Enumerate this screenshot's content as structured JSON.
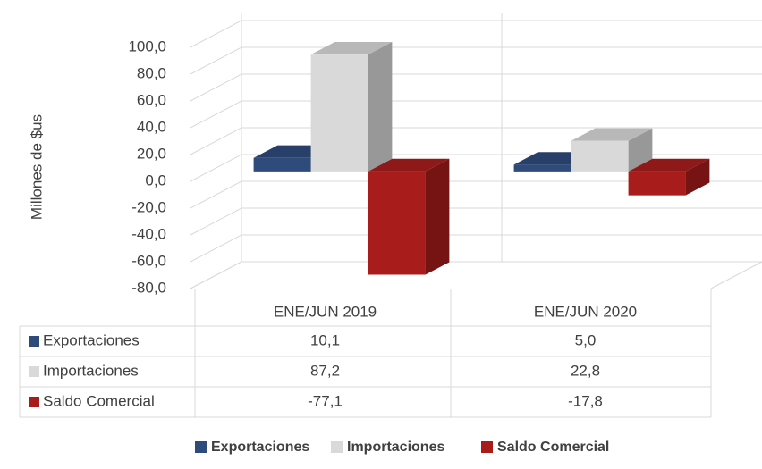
{
  "chart_data": {
    "type": "bar",
    "y_label": "Millones de $us",
    "categories": [
      "ENE/JUN 2019",
      "ENE/JUN 2020"
    ],
    "series": [
      {
        "name": "Exportaciones",
        "color": "#2f4b7c",
        "values": [
          10.1,
          5.0
        ],
        "value_labels": [
          "10,1",
          "5,0"
        ]
      },
      {
        "name": "Importaciones",
        "color": "#d9d9d9",
        "values": [
          87.2,
          22.8
        ],
        "value_labels": [
          "87,2",
          "22,8"
        ]
      },
      {
        "name": "Saldo Comercial",
        "color": "#a81c1c",
        "values": [
          -77.1,
          -17.8
        ],
        "value_labels": [
          "-77,1",
          "-17,8"
        ]
      }
    ],
    "ylim": [
      -80,
      100
    ],
    "yticks": [
      {
        "value": -80,
        "label": "-80,0"
      },
      {
        "value": -60,
        "label": "-60,0"
      },
      {
        "value": -40,
        "label": "-40,0"
      },
      {
        "value": -20,
        "label": "-20,0"
      },
      {
        "value": 0,
        "label": "0,0"
      },
      {
        "value": 20,
        "label": "20,0"
      },
      {
        "value": 40,
        "label": "40,0"
      },
      {
        "value": 60,
        "label": "60,0"
      },
      {
        "value": 80,
        "label": "80,0"
      },
      {
        "value": 100,
        "label": "100,0"
      }
    ],
    "grid": true,
    "legend": "bottom"
  }
}
